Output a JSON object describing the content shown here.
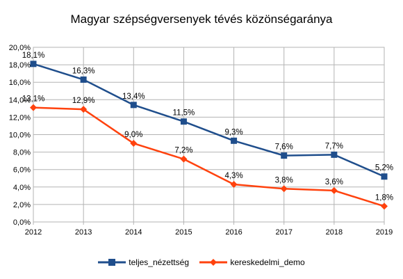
{
  "chart_data": {
    "type": "line",
    "title": "Magyar szépségversenyek tévés közönségaránya",
    "xlabel": "",
    "ylabel": "",
    "categories": [
      "2012",
      "2013",
      "2014",
      "2015",
      "2016",
      "2017",
      "2018",
      "2019"
    ],
    "ylim": [
      0,
      20
    ],
    "yticks": [
      "0,0%",
      "2,0%",
      "4,0%",
      "6,0%",
      "8,0%",
      "10,0%",
      "12,0%",
      "14,0%",
      "16,0%",
      "18,0%",
      "20,0%"
    ],
    "grid": true,
    "legend_position": "bottom",
    "series": [
      {
        "name": "teljes_nézettség",
        "color": "#1f4e8c",
        "marker": "square",
        "values": [
          18.1,
          16.3,
          13.4,
          11.5,
          9.3,
          7.6,
          7.7,
          5.2
        ],
        "labels": [
          "18,1%",
          "16,3%",
          "13,4%",
          "11,5%",
          "9,3%",
          "7,6%",
          "7,7%",
          "5,2%"
        ]
      },
      {
        "name": "kereskedelmi_demo",
        "color": "#ff420e",
        "marker": "diamond",
        "values": [
          13.1,
          12.9,
          9.0,
          7.2,
          4.3,
          3.8,
          3.6,
          1.8
        ],
        "labels": [
          "13,1%",
          "12,9%",
          "9,0%",
          "7,2%",
          "4,3%",
          "3,8%",
          "3,6%",
          "1,8%"
        ]
      }
    ]
  }
}
